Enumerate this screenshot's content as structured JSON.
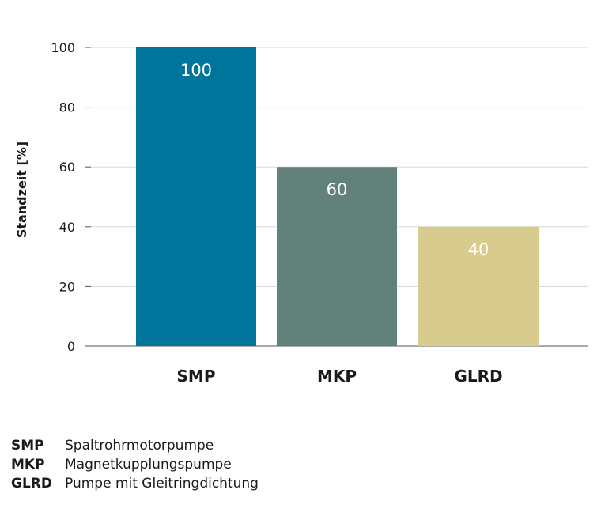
{
  "chart_data": {
    "type": "bar",
    "categories": [
      "SMP",
      "MKP",
      "GLRD"
    ],
    "values": [
      100,
      60,
      40
    ],
    "data_labels": [
      "100",
      "60",
      "40"
    ],
    "ylabel": "Standzeit [%]",
    "xlabel": "",
    "ylim": [
      0,
      100
    ],
    "yticks": [
      0,
      20,
      40,
      60,
      80,
      100
    ],
    "grid": true,
    "colors": [
      "#00759b",
      "#62817a",
      "#d8cb8e"
    ]
  },
  "legend": [
    {
      "abbr": "SMP",
      "text": "Spaltrohrmotorpumpe"
    },
    {
      "abbr": "MKP",
      "text": "Magnetkupplungspumpe"
    },
    {
      "abbr": "GLRD",
      "text": "Pumpe mit Gleitringdichtung"
    }
  ]
}
